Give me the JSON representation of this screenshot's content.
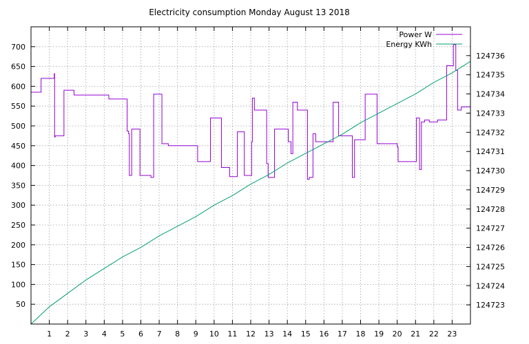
{
  "chart_data": {
    "type": "line",
    "title": "Electricity consumption Monday August 13 2018",
    "xlabel": "",
    "ylabel": "",
    "y2label": "",
    "grid": true,
    "legend_position": "top-right",
    "xlim": [
      0,
      24
    ],
    "ylim": [
      0,
      750
    ],
    "y2lim": [
      124722,
      124737.5
    ],
    "x_ticks": [
      1,
      2,
      3,
      4,
      5,
      6,
      7,
      8,
      9,
      10,
      11,
      12,
      13,
      14,
      15,
      16,
      17,
      18,
      19,
      20,
      21,
      22,
      23
    ],
    "y_ticks": [
      50,
      100,
      150,
      200,
      250,
      300,
      350,
      400,
      450,
      500,
      550,
      600,
      650,
      700
    ],
    "y2_ticks": [
      124723,
      124724,
      124725,
      124726,
      124727,
      124728,
      124729,
      124730,
      124731,
      124732,
      124733,
      124734,
      124735,
      124736
    ],
    "series": [
      {
        "name": "Power W",
        "color": "#9400d3",
        "axis": "y1",
        "step": true,
        "x": [
          0,
          0.55,
          1.27,
          1.29,
          1.32,
          1.8,
          2.35,
          4.25,
          5.25,
          5.33,
          5.37,
          5.5,
          5.95,
          6.55,
          6.7,
          7.15,
          7.5,
          8.75,
          9.1,
          9.8,
          10.4,
          10.85,
          11.27,
          11.65,
          12.05,
          12.09,
          12.2,
          12.87,
          12.95,
          13.3,
          14.05,
          14.2,
          14.3,
          14.55,
          15.1,
          15.2,
          15.4,
          15.55,
          16.5,
          16.8,
          17.55,
          17.67,
          18.25,
          18.9,
          20.0,
          20.05,
          21.05,
          21.22,
          21.32,
          21.5,
          21.75,
          22.2,
          22.7,
          23.07,
          23.2,
          23.3,
          23.5,
          23.95
        ],
        "y": [
          585,
          620,
          632,
          472,
          475,
          590,
          578,
          568,
          487,
          480,
          375,
          492,
          375,
          370,
          580,
          455,
          450,
          450,
          410,
          520,
          395,
          372,
          485,
          375,
          460,
          570,
          540,
          405,
          370,
          492,
          460,
          430,
          560,
          540,
          365,
          370,
          480,
          460,
          560,
          475,
          370,
          465,
          580,
          455,
          447,
          410,
          520,
          390,
          510,
          515,
          510,
          515,
          652,
          705,
          640,
          540,
          548,
          548
        ]
      },
      {
        "name": "Energy KWh",
        "color": "#009e73",
        "axis": "y2",
        "step": false,
        "x": [
          0,
          1,
          2,
          3,
          4,
          5,
          6,
          7,
          8,
          9,
          10,
          11,
          12,
          13,
          14,
          15,
          16,
          17,
          18,
          19,
          20,
          21,
          22,
          23,
          24
        ],
        "y": [
          124722.0,
          124722.9,
          124723.6,
          124724.3,
          124724.9,
          124725.5,
          124726.0,
          124726.6,
          124727.1,
          124727.6,
          124728.2,
          124728.7,
          124729.3,
          124729.8,
          124730.4,
          124730.9,
          124731.4,
          124731.9,
          124732.5,
          124733.0,
          124733.5,
          124734.0,
          124734.6,
          124735.1,
          124735.7
        ]
      }
    ]
  }
}
